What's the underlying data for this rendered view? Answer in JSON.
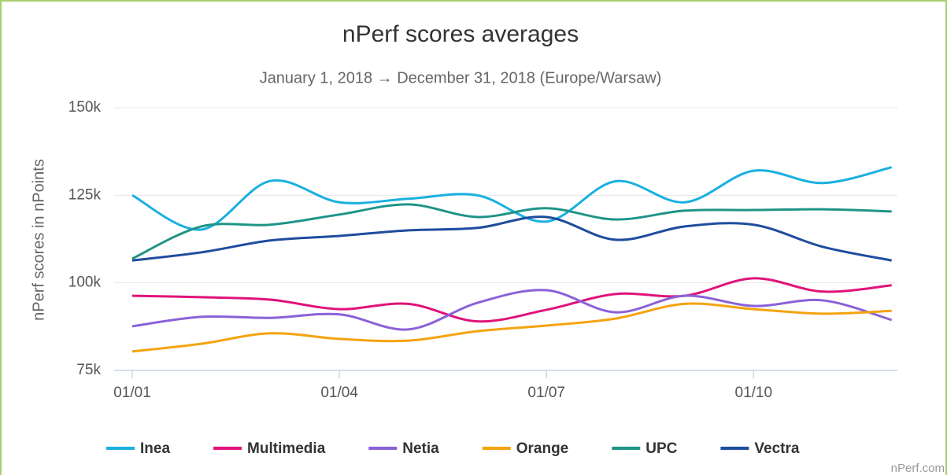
{
  "chart_data": {
    "type": "line",
    "title": "nPerf scores averages",
    "subtitle": "January 1, 2018 → December 31, 2018 (Europe/Warsaw)",
    "y_label": "nPerf scores in nPoints",
    "credit": "nPerf.com",
    "categories": [
      "01/01",
      null,
      null,
      "01/04",
      null,
      null,
      "01/07",
      null,
      null,
      "01/10",
      null,
      null
    ],
    "ylim": [
      75000,
      150000
    ],
    "yticks": [
      {
        "value": 75000,
        "label": "75k"
      },
      {
        "value": 100000,
        "label": "100k"
      },
      {
        "value": 125000,
        "label": "125k"
      },
      {
        "value": 150000,
        "label": "150k"
      }
    ],
    "grid": true,
    "legend": "bottom",
    "series": [
      {
        "name": "Inea",
        "color": "#1ab0e0",
        "values": [
          125000,
          115200,
          129100,
          123000,
          124000,
          125000,
          117500,
          129000,
          123000,
          132000,
          128500,
          133000
        ]
      },
      {
        "name": "Multimedia",
        "color": "#e0137a",
        "values": [
          96300,
          95900,
          95200,
          92500,
          94000,
          89000,
          92300,
          96800,
          96300,
          101300,
          97500,
          99300
        ]
      },
      {
        "name": "Netia",
        "color": "#8a62d8",
        "values": [
          87600,
          90300,
          90000,
          91000,
          86700,
          94300,
          97900,
          91600,
          96300,
          93400,
          95000,
          89400
        ]
      },
      {
        "name": "Orange",
        "color": "#f5a30f",
        "values": [
          80400,
          82600,
          85600,
          84000,
          83500,
          86200,
          87800,
          89800,
          94000,
          92500,
          91200,
          92000
        ]
      },
      {
        "name": "UPC",
        "color": "#1f9488",
        "values": [
          106900,
          116100,
          116600,
          119500,
          122400,
          118800,
          121300,
          118100,
          120600,
          120800,
          121000,
          120400
        ]
      },
      {
        "name": "Vectra",
        "color": "#1f4c9e",
        "values": [
          106400,
          108700,
          112100,
          113400,
          115000,
          115700,
          118800,
          112300,
          116100,
          116600,
          110300,
          106400
        ]
      }
    ]
  }
}
